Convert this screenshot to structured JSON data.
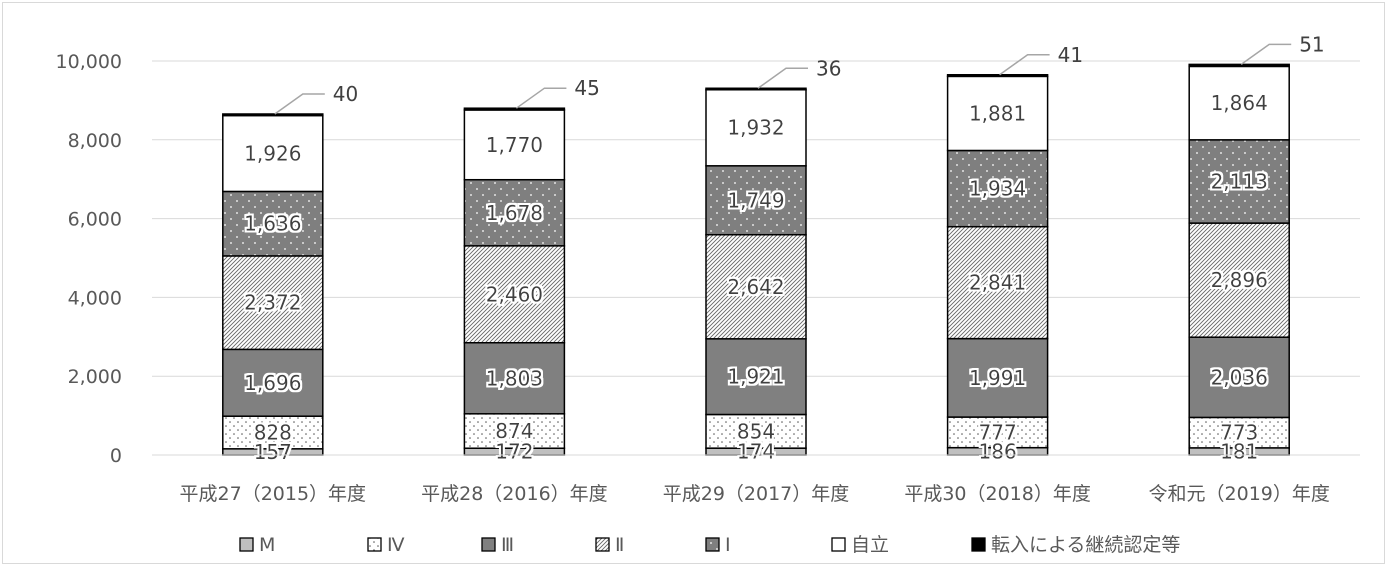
{
  "chart_data": {
    "type": "bar",
    "stacked": true,
    "categories": [
      "平成27（2015）年度",
      "平成28（2016）年度",
      "平成29（2017）年度",
      "平成30（2018）年度",
      "令和元（2019）年度"
    ],
    "ylim": [
      0,
      10000
    ],
    "yticks": [
      "0",
      "2,000",
      "4,000",
      "6,000",
      "8,000",
      "10,000"
    ],
    "ytick_values": [
      0,
      2000,
      4000,
      6000,
      8000,
      10000
    ],
    "grid": true,
    "legend_position": "bottom",
    "series": [
      {
        "name": "M",
        "values": [
          157,
          172,
          174,
          186,
          181
        ],
        "labels": [
          "157",
          "172",
          "174",
          "186",
          "181"
        ],
        "color": "#bfbfbf",
        "pattern": "solid-light"
      },
      {
        "name": "Ⅳ",
        "values": [
          828,
          874,
          854,
          777,
          773
        ],
        "labels": [
          "828",
          "874",
          "854",
          "777",
          "773"
        ],
        "color": "#ffffff",
        "pattern": "dots-sparse"
      },
      {
        "name": "Ⅲ",
        "values": [
          1696,
          1803,
          1921,
          1991,
          2036
        ],
        "labels": [
          "1,696",
          "1,803",
          "1,921",
          "1,991",
          "2,036"
        ],
        "color": "#808080",
        "pattern": "solid-dark"
      },
      {
        "name": "Ⅱ",
        "values": [
          2372,
          2460,
          2642,
          2841,
          2896
        ],
        "labels": [
          "2,372",
          "2,460",
          "2,642",
          "2,841",
          "2,896"
        ],
        "color": "#ffffff",
        "pattern": "diagonal-hatch"
      },
      {
        "name": "Ⅰ",
        "values": [
          1636,
          1678,
          1749,
          1934,
          2113
        ],
        "labels": [
          "1,636",
          "1,678",
          "1,749",
          "1,934",
          "2,113"
        ],
        "color": "#7f7f7f",
        "pattern": "dots-on-dark"
      },
      {
        "name": "自立",
        "values": [
          1926,
          1770,
          1932,
          1881,
          1864
        ],
        "labels": [
          "1,926",
          "1,770",
          "1,932",
          "1,881",
          "1,864"
        ],
        "color": "#ffffff",
        "pattern": "solid-white"
      },
      {
        "name": "転入による継続認定等",
        "values": [
          40,
          45,
          36,
          41,
          51
        ],
        "labels": [
          "40",
          "45",
          "36",
          "41",
          "51"
        ],
        "color": "#000000",
        "pattern": "solid-black"
      }
    ]
  }
}
